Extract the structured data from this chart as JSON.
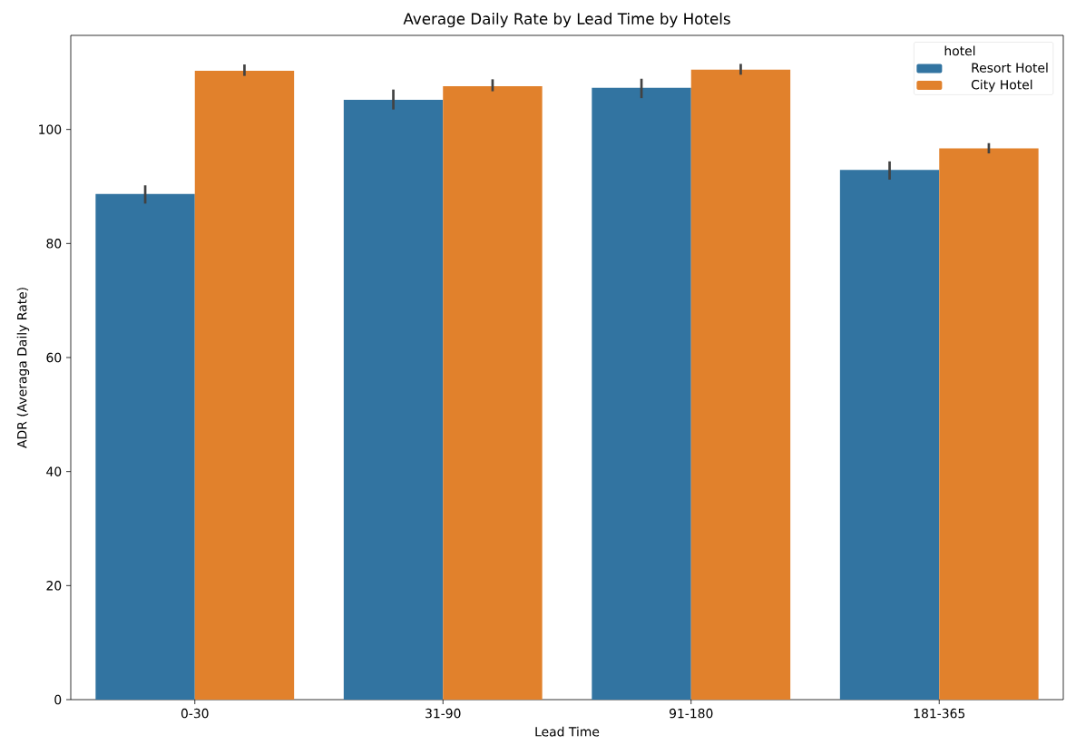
{
  "chart_data": {
    "type": "bar",
    "title": "Average Daily Rate by Lead Time by Hotels",
    "xlabel": "Lead Time",
    "ylabel": "ADR (Averaga Daily Rate)",
    "legend_title": "hotel",
    "legend": "top right",
    "categories": [
      "0-30",
      "31-90",
      "91-180",
      "181-365"
    ],
    "ylim": [
      0,
      116.5
    ],
    "yticks": [
      0,
      20,
      40,
      60,
      80,
      100
    ],
    "series": [
      {
        "name": "Resort Hotel",
        "color": "#3274a1",
        "values": [
          88.7,
          105.2,
          107.3,
          92.9
        ],
        "errors": [
          [
            87.0,
            90.2
          ],
          [
            103.5,
            107.0
          ],
          [
            105.5,
            108.9
          ],
          [
            91.2,
            94.4
          ]
        ]
      },
      {
        "name": "City Hotel",
        "color": "#e1812c",
        "values": [
          110.3,
          107.6,
          110.5,
          96.7
        ],
        "errors": [
          [
            109.4,
            111.4
          ],
          [
            106.7,
            108.8
          ],
          [
            109.6,
            111.5
          ],
          [
            95.8,
            97.6
          ]
        ]
      }
    ]
  }
}
